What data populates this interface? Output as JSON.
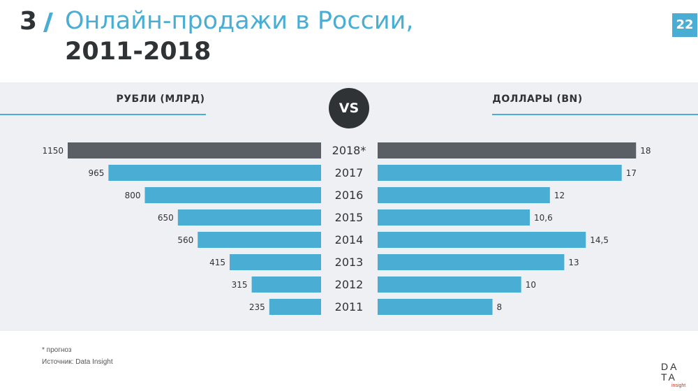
{
  "header": {
    "number": "3",
    "title_line1": "Онлайн-продажи в России,",
    "title_line2": "2011-2018",
    "page_number": "22"
  },
  "vs_label": "VS",
  "logo": {
    "text_top": "DATA",
    "text_sub": "insight"
  },
  "colors": {
    "accent": "#4aaed4",
    "dark": "#2f3336",
    "forecast_bar": "#595f64",
    "panel_bg": "#eef0f4"
  },
  "chart_data": {
    "type": "bar",
    "orientation": "horizontal-butterfly",
    "categories": [
      "2018*",
      "2017",
      "2016",
      "2015",
      "2014",
      "2013",
      "2012",
      "2011"
    ],
    "series": [
      {
        "name": "РУБЛИ (МЛРД)",
        "values": [
          1150,
          965,
          800,
          650,
          560,
          415,
          315,
          235
        ],
        "labels": [
          "1150",
          "965",
          "800",
          "650",
          "560",
          "415",
          "315",
          "235"
        ],
        "max": 1150
      },
      {
        "name": "ДОЛЛАРЫ (BN)",
        "values": [
          18,
          17,
          12,
          10.6,
          14.5,
          13,
          10,
          8
        ],
        "labels": [
          "18",
          "17",
          "12",
          "10,6",
          "14,5",
          "13",
          "10",
          "8"
        ],
        "max": 18
      }
    ],
    "highlight_category": "2018*"
  },
  "footnote": "* прогноз",
  "source": "Источник: Data Insight"
}
